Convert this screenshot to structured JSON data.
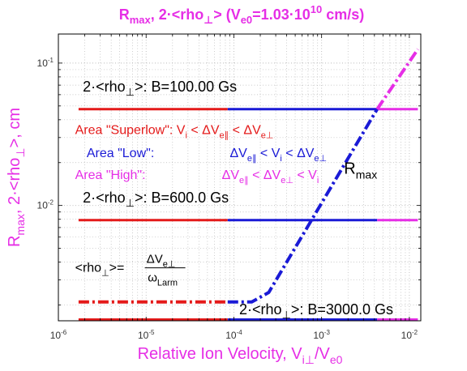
{
  "colors": {
    "magenta": "#e62ee6",
    "red": "#e41a1a",
    "blue": "#1a1ad6",
    "black": "#000000",
    "grid": "#b8b8b8"
  },
  "chart_data": {
    "type": "line",
    "title": {
      "parts": [
        {
          "t": "R",
          "s": "n"
        },
        {
          "t": "max",
          "s": "sub"
        },
        {
          "t": ", 2·<rho",
          "s": "n"
        },
        {
          "t": "⊥",
          "s": "sub"
        },
        {
          "t": "> (V",
          "s": "n"
        },
        {
          "t": "e0",
          "s": "sub"
        },
        {
          "t": "=1.03·10",
          "s": "n"
        },
        {
          "t": "10",
          "s": "sup"
        },
        {
          "t": " cm/s)",
          "s": "n"
        }
      ]
    },
    "xlabel": {
      "parts": [
        {
          "t": "Relative Ion Velocity, V",
          "s": "n"
        },
        {
          "t": "i⊥",
          "s": "sub"
        },
        {
          "t": "/V",
          "s": "n"
        },
        {
          "t": "e0",
          "s": "sub"
        }
      ]
    },
    "ylabel": {
      "parts": [
        {
          "t": "R",
          "s": "n"
        },
        {
          "t": "max",
          "s": "sub"
        },
        {
          "t": ", 2·<rho",
          "s": "n"
        },
        {
          "t": "⊥",
          "s": "sub"
        },
        {
          "t": ">, cm",
          "s": "n"
        }
      ]
    },
    "x_scale": "log",
    "y_scale": "log",
    "xlim": [
      1e-06,
      0.0135
    ],
    "ylim": [
      0.00155,
      0.16
    ],
    "grid": true,
    "x_ticks": [
      {
        "v": 1e-06,
        "base": "10",
        "exp": "-6"
      },
      {
        "v": 1e-05,
        "base": "10",
        "exp": "-5"
      },
      {
        "v": 0.0001,
        "base": "10",
        "exp": "-4"
      },
      {
        "v": 0.001,
        "base": "10",
        "exp": "-3"
      },
      {
        "v": 0.01,
        "base": "10",
        "exp": "-2"
      }
    ],
    "y_ticks": [
      {
        "v": 0.01,
        "base": "10",
        "exp": "-2"
      },
      {
        "v": 0.1,
        "base": "10",
        "exp": "-1"
      }
    ],
    "series": [
      {
        "name": "2·<rho⊥>: B=100.00 Gs",
        "style": "solid",
        "segments": [
          {
            "color": "red",
            "x": [
              1.7e-06,
              8.5e-05
            ],
            "y": [
              0.0475,
              0.0475
            ]
          },
          {
            "color": "blue",
            "x": [
              8.5e-05,
              0.0043
            ],
            "y": [
              0.0475,
              0.0475
            ]
          },
          {
            "color": "magenta",
            "x": [
              0.0043,
              0.0125
            ],
            "y": [
              0.0475,
              0.0475
            ]
          }
        ]
      },
      {
        "name": "2·<rho⊥>: B=600.0 Gs",
        "style": "solid",
        "segments": [
          {
            "color": "red",
            "x": [
              1.7e-06,
              8.5e-05
            ],
            "y": [
              0.0079,
              0.0079
            ]
          },
          {
            "color": "blue",
            "x": [
              8.5e-05,
              0.0043
            ],
            "y": [
              0.0079,
              0.0079
            ]
          },
          {
            "color": "magenta",
            "x": [
              0.0043,
              0.0125
            ],
            "y": [
              0.0079,
              0.0079
            ]
          }
        ]
      },
      {
        "name": "2·<rho⊥>: B=3000.0 Gs",
        "style": "solid",
        "segments": [
          {
            "color": "red",
            "x": [
              1.7e-06,
              8.5e-05
            ],
            "y": [
              0.00158,
              0.00158
            ]
          },
          {
            "color": "blue",
            "x": [
              8.5e-05,
              0.0043
            ],
            "y": [
              0.00158,
              0.00158
            ]
          },
          {
            "color": "magenta",
            "x": [
              0.0043,
              0.0125
            ],
            "y": [
              0.00158,
              0.00158
            ]
          }
        ]
      },
      {
        "name": "R max",
        "style": "dashdot",
        "segments": [
          {
            "color": "red",
            "x": [
              1.7e-06,
              8.5e-05
            ],
            "y": [
              0.0021,
              0.0021
            ]
          },
          {
            "color": "blue",
            "x": [
              8.5e-05,
              0.00016,
              0.00025,
              0.0043
            ],
            "y": [
              0.0021,
              0.0021,
              0.00245,
              0.0475
            ]
          },
          {
            "color": "magenta",
            "x": [
              0.0043,
              0.0125
            ],
            "y": [
              0.0475,
              0.125
            ]
          }
        ]
      }
    ],
    "annotations": [
      {
        "id": "label-b100",
        "color": "black",
        "size": 18,
        "x": 1.9e-06,
        "y": 0.063,
        "parts": [
          {
            "t": "2·<rho",
            "s": "n"
          },
          {
            "t": "⊥",
            "s": "sub"
          },
          {
            "t": ">: B=100.00 Gs",
            "s": "n"
          }
        ]
      },
      {
        "id": "area-superlow",
        "color": "red",
        "size": 16,
        "x": 1.55e-06,
        "y": 0.0318,
        "parts": [
          {
            "t": "Area \"Superlow\": V",
            "s": "n"
          },
          {
            "t": "i",
            "s": "sub"
          },
          {
            "t": " < ΔV",
            "s": "n"
          },
          {
            "t": "e∥",
            "s": "sub"
          },
          {
            "t": " < ΔV",
            "s": "n"
          },
          {
            "t": "e⊥",
            "s": "sub"
          }
        ]
      },
      {
        "id": "area-low-name",
        "color": "blue",
        "size": 16,
        "x": 2.1e-06,
        "y": 0.0218,
        "parts": [
          {
            "t": "Area \"Low\":",
            "s": "n"
          }
        ]
      },
      {
        "id": "area-low-cond",
        "color": "blue",
        "size": 16,
        "x": 9e-05,
        "y": 0.0218,
        "parts": [
          {
            "t": "ΔV",
            "s": "n"
          },
          {
            "t": "e∥",
            "s": "sub"
          },
          {
            "t": " < V",
            "s": "n"
          },
          {
            "t": "i",
            "s": "sub"
          },
          {
            "t": " < ΔV",
            "s": "n"
          },
          {
            "t": "e⊥",
            "s": "sub"
          }
        ]
      },
      {
        "id": "area-high-name",
        "color": "magenta",
        "size": 16,
        "x": 1.55e-06,
        "y": 0.0153,
        "parts": [
          {
            "t": "Area \"High\":",
            "s": "n"
          }
        ]
      },
      {
        "id": "area-high-cond",
        "color": "magenta",
        "size": 16,
        "x": 7.3e-05,
        "y": 0.0153,
        "parts": [
          {
            "t": "ΔV",
            "s": "n"
          },
          {
            "t": "e∥",
            "s": "sub"
          },
          {
            "t": " < ΔV",
            "s": "n"
          },
          {
            "t": "e⊥",
            "s": "sub"
          },
          {
            "t": " < V",
            "s": "n"
          },
          {
            "t": "i",
            "s": "sub"
          }
        ]
      },
      {
        "id": "rmax-label",
        "color": "black",
        "size": 20,
        "x": 0.0018,
        "y": 0.0167,
        "parts": [
          {
            "t": "R",
            "s": "n"
          },
          {
            "t": "max",
            "s": "sub"
          }
        ]
      },
      {
        "id": "label-b600",
        "color": "black",
        "size": 18,
        "x": 1.9e-06,
        "y": 0.0105,
        "parts": [
          {
            "t": "2·<rho",
            "s": "n"
          },
          {
            "t": "⊥",
            "s": "sub"
          },
          {
            "t": ">: B=600.0 Gs",
            "s": "n"
          }
        ]
      },
      {
        "id": "label-b3000",
        "color": "black",
        "size": 18,
        "x": 0.000115,
        "y": 0.00172,
        "parts": [
          {
            "t": "2·<rho",
            "s": "n"
          },
          {
            "t": "⊥",
            "s": "sub"
          },
          {
            "t": ">: B=3000.0 Gs",
            "s": "n"
          }
        ]
      }
    ],
    "formula": {
      "lhs": [
        {
          "t": "<rho",
          "s": "n"
        },
        {
          "t": "⊥",
          "s": "sub"
        },
        {
          "t": ">=",
          "s": "n"
        }
      ],
      "numerator": [
        {
          "t": "ΔV",
          "s": "n"
        },
        {
          "t": "e⊥",
          "s": "sub"
        }
      ],
      "denominator": [
        {
          "t": "ω",
          "s": "n"
        },
        {
          "t": "Larm",
          "s": "sub"
        }
      ],
      "x": 1.55e-06,
      "y": 0.0037
    }
  }
}
